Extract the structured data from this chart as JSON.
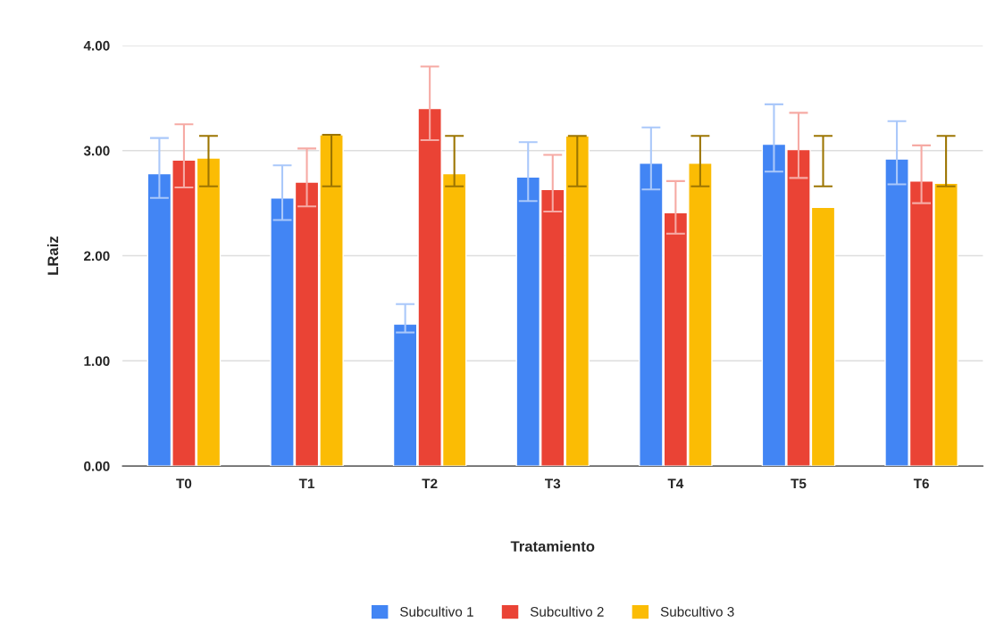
{
  "chart_data": {
    "type": "bar",
    "xlabel": "Tratamiento",
    "ylabel": "LRaiz",
    "categories": [
      "T0",
      "T1",
      "T2",
      "T3",
      "T4",
      "T5",
      "T6"
    ],
    "series": [
      {
        "name": "Subcultivo 1",
        "color": "#4285f4",
        "values": [
          2.78,
          2.55,
          1.35,
          2.75,
          2.88,
          3.06,
          2.92
        ],
        "errors": [
          [
            2.55,
            3.12
          ],
          [
            2.34,
            2.86
          ],
          [
            1.27,
            1.54
          ],
          [
            2.52,
            3.08
          ],
          [
            2.63,
            3.22
          ],
          [
            2.8,
            3.44
          ],
          [
            2.68,
            3.28
          ]
        ]
      },
      {
        "name": "Subcultivo 2",
        "color": "#ea4335",
        "values": [
          2.91,
          2.7,
          3.4,
          2.63,
          2.41,
          3.01,
          2.71
        ],
        "errors": [
          [
            2.65,
            3.25
          ],
          [
            2.47,
            3.02
          ],
          [
            3.1,
            3.8
          ],
          [
            2.42,
            2.96
          ],
          [
            2.21,
            2.71
          ],
          [
            2.74,
            3.36
          ],
          [
            2.5,
            3.05
          ]
        ]
      },
      {
        "name": "Subcultivo 3",
        "color": "#fbbc04",
        "values": [
          2.93,
          3.15,
          2.78,
          3.14,
          2.88,
          2.46,
          2.69
        ],
        "errors": [
          [
            2.66,
            3.14
          ],
          [
            2.66,
            3.15
          ],
          [
            2.66,
            3.14
          ],
          [
            2.66,
            3.14
          ],
          [
            2.66,
            3.14
          ],
          [
            2.66,
            3.14
          ],
          [
            2.66,
            3.14
          ]
        ]
      }
    ],
    "ylim": [
      0,
      4
    ],
    "yticks": [
      {
        "value": 0,
        "label": "0.00"
      },
      {
        "value": 1,
        "label": "1.00"
      },
      {
        "value": 2,
        "label": "2.00"
      },
      {
        "value": 3,
        "label": "3.00"
      },
      {
        "value": 4,
        "label": "4.00"
      }
    ],
    "grid": "y",
    "legend": "bottom"
  }
}
